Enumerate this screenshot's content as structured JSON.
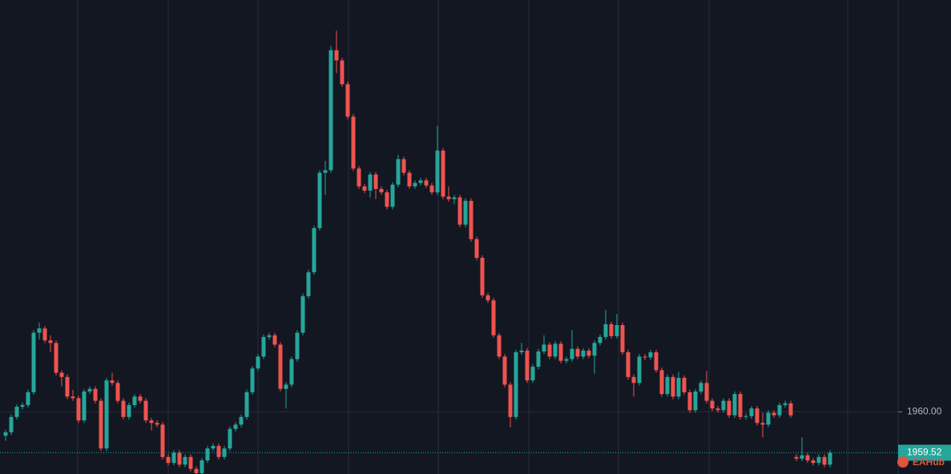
{
  "chart_data": {
    "type": "candlestick",
    "watermark": "EAHub",
    "up_color": "#26a69a",
    "down_color": "#ef5350",
    "ylim": [
      1959.27,
      1964.84
    ],
    "yticks": [
      {
        "value": 1960,
        "label": "1960.00"
      }
    ],
    "last_price": 1959.52,
    "grid": true,
    "candles": [
      [
        1959.72,
        1959.79,
        1959.66,
        1959.76
      ],
      [
        1959.76,
        1959.97,
        1959.73,
        1959.94
      ],
      [
        1959.94,
        1960.09,
        1959.91,
        1960.06
      ],
      [
        1960.06,
        1960.11,
        1960.03,
        1960.08
      ],
      [
        1960.08,
        1960.26,
        1960.05,
        1960.23
      ],
      [
        1960.23,
        1960.96,
        1960.2,
        1960.93
      ],
      [
        1960.93,
        1961.05,
        1960.85,
        1960.98
      ],
      [
        1960.98,
        1961.01,
        1960.81,
        1960.84
      ],
      [
        1960.84,
        1960.9,
        1960.7,
        1960.81
      ],
      [
        1960.81,
        1960.84,
        1960.43,
        1960.46
      ],
      [
        1960.46,
        1960.49,
        1960.3,
        1960.41
      ],
      [
        1960.41,
        1960.44,
        1960.15,
        1960.18
      ],
      [
        1960.18,
        1960.26,
        1960.13,
        1960.16
      ],
      [
        1960.16,
        1960.19,
        1959.87,
        1959.9
      ],
      [
        1959.9,
        1960.27,
        1959.87,
        1960.24
      ],
      [
        1960.24,
        1960.3,
        1960.21,
        1960.27
      ],
      [
        1960.27,
        1960.3,
        1960.1,
        1960.13
      ],
      [
        1960.13,
        1960.16,
        1959.54,
        1959.57
      ],
      [
        1959.57,
        1960.4,
        1959.54,
        1960.37
      ],
      [
        1960.37,
        1960.46,
        1960.31,
        1960.34
      ],
      [
        1960.34,
        1960.37,
        1960.1,
        1960.13
      ],
      [
        1960.13,
        1960.16,
        1959.91,
        1959.94
      ],
      [
        1959.94,
        1960.11,
        1959.91,
        1960.08
      ],
      [
        1960.08,
        1960.21,
        1960.05,
        1960.18
      ],
      [
        1960.18,
        1960.21,
        1960.1,
        1960.13
      ],
      [
        1960.13,
        1960.16,
        1959.87,
        1959.9
      ],
      [
        1959.9,
        1959.93,
        1959.78,
        1959.87
      ],
      [
        1959.87,
        1959.9,
        1959.82,
        1959.85
      ],
      [
        1959.85,
        1959.88,
        1959.44,
        1959.47
      ],
      [
        1959.47,
        1959.5,
        1959.37,
        1959.4
      ],
      [
        1959.4,
        1959.55,
        1959.37,
        1959.52
      ],
      [
        1959.52,
        1959.55,
        1959.35,
        1959.38
      ],
      [
        1959.38,
        1959.5,
        1959.35,
        1959.47
      ],
      [
        1959.47,
        1959.5,
        1959.3,
        1959.33
      ],
      [
        1959.33,
        1959.36,
        1959.25,
        1959.28
      ],
      [
        1959.28,
        1959.46,
        1959.25,
        1959.43
      ],
      [
        1959.43,
        1959.6,
        1959.4,
        1959.57
      ],
      [
        1959.57,
        1959.63,
        1959.54,
        1959.6
      ],
      [
        1959.6,
        1959.63,
        1959.44,
        1959.47
      ],
      [
        1959.47,
        1959.6,
        1959.44,
        1959.57
      ],
      [
        1959.57,
        1959.83,
        1959.54,
        1959.8
      ],
      [
        1959.8,
        1959.88,
        1959.77,
        1959.85
      ],
      [
        1959.85,
        1959.97,
        1959.82,
        1959.94
      ],
      [
        1959.94,
        1960.26,
        1959.91,
        1960.23
      ],
      [
        1960.23,
        1960.54,
        1960.2,
        1960.51
      ],
      [
        1960.51,
        1960.68,
        1960.48,
        1960.65
      ],
      [
        1960.65,
        1960.91,
        1960.62,
        1960.88
      ],
      [
        1960.88,
        1960.93,
        1960.85,
        1960.9
      ],
      [
        1960.9,
        1960.93,
        1960.76,
        1960.79
      ],
      [
        1960.79,
        1960.82,
        1960.24,
        1960.27
      ],
      [
        1960.27,
        1960.35,
        1960.04,
        1960.32
      ],
      [
        1960.32,
        1960.65,
        1960.29,
        1960.62
      ],
      [
        1960.62,
        1960.96,
        1960.59,
        1960.93
      ],
      [
        1960.93,
        1961.39,
        1960.9,
        1961.36
      ],
      [
        1961.36,
        1961.67,
        1961.33,
        1961.64
      ],
      [
        1961.64,
        1962.19,
        1961.61,
        1962.16
      ],
      [
        1962.16,
        1962.84,
        1962.13,
        1962.81
      ],
      [
        1962.81,
        1962.95,
        1962.55,
        1962.84
      ],
      [
        1962.84,
        1964.3,
        1962.81,
        1964.25
      ],
      [
        1964.25,
        1964.48,
        1963.98,
        1964.13
      ],
      [
        1964.13,
        1964.16,
        1963.82,
        1963.85
      ],
      [
        1963.85,
        1963.88,
        1963.44,
        1963.47
      ],
      [
        1963.47,
        1963.5,
        1962.83,
        1962.86
      ],
      [
        1962.86,
        1962.89,
        1962.62,
        1962.65
      ],
      [
        1962.65,
        1962.68,
        1962.57,
        1962.6
      ],
      [
        1962.6,
        1962.82,
        1962.52,
        1962.79
      ],
      [
        1962.79,
        1962.82,
        1962.5,
        1962.62
      ],
      [
        1962.62,
        1962.65,
        1962.55,
        1962.58
      ],
      [
        1962.58,
        1962.61,
        1962.38,
        1962.41
      ],
      [
        1962.41,
        1962.7,
        1962.38,
        1962.67
      ],
      [
        1962.67,
        1963.02,
        1962.64,
        1962.97
      ],
      [
        1962.97,
        1963,
        1962.78,
        1962.81
      ],
      [
        1962.81,
        1962.84,
        1962.62,
        1962.65
      ],
      [
        1962.65,
        1962.72,
        1962.62,
        1962.69
      ],
      [
        1962.69,
        1962.75,
        1962.66,
        1962.72
      ],
      [
        1962.72,
        1962.75,
        1962.63,
        1962.66
      ],
      [
        1962.66,
        1962.69,
        1962.55,
        1962.58
      ],
      [
        1962.58,
        1963.36,
        1962.55,
        1963.07
      ],
      [
        1963.07,
        1963.1,
        1962.5,
        1962.53
      ],
      [
        1962.53,
        1962.65,
        1962.47,
        1962.5
      ],
      [
        1962.5,
        1962.55,
        1962.44,
        1962.52
      ],
      [
        1962.52,
        1962.55,
        1962.17,
        1962.2
      ],
      [
        1962.2,
        1962.51,
        1962.17,
        1962.48
      ],
      [
        1962.48,
        1962.51,
        1962,
        1962.03
      ],
      [
        1962.03,
        1962.06,
        1961.78,
        1961.81
      ],
      [
        1961.81,
        1961.84,
        1961.34,
        1961.37
      ],
      [
        1961.37,
        1961.4,
        1961.28,
        1961.31
      ],
      [
        1961.31,
        1961.34,
        1960.87,
        1960.9
      ],
      [
        1960.9,
        1960.93,
        1960.62,
        1960.65
      ],
      [
        1960.65,
        1960.68,
        1960.29,
        1960.32
      ],
      [
        1960.32,
        1960.35,
        1959.82,
        1959.94
      ],
      [
        1959.94,
        1960.73,
        1959.91,
        1960.7
      ],
      [
        1960.7,
        1960.81,
        1960.67,
        1960.72
      ],
      [
        1960.72,
        1960.75,
        1960.34,
        1960.37
      ],
      [
        1960.37,
        1960.56,
        1960.34,
        1960.53
      ],
      [
        1960.53,
        1960.74,
        1960.5,
        1960.71
      ],
      [
        1960.71,
        1960.9,
        1960.68,
        1960.79
      ],
      [
        1960.79,
        1960.82,
        1960.62,
        1960.65
      ],
      [
        1960.65,
        1960.83,
        1960.62,
        1960.8
      ],
      [
        1960.8,
        1960.83,
        1960.57,
        1960.6
      ],
      [
        1960.6,
        1960.65,
        1960.57,
        1960.62
      ],
      [
        1960.62,
        1960.96,
        1960.59,
        1960.74
      ],
      [
        1960.74,
        1960.77,
        1960.62,
        1960.65
      ],
      [
        1960.65,
        1960.75,
        1960.62,
        1960.72
      ],
      [
        1960.72,
        1960.75,
        1960.63,
        1960.66
      ],
      [
        1960.66,
        1960.84,
        1960.45,
        1960.81
      ],
      [
        1960.81,
        1960.91,
        1960.78,
        1960.88
      ],
      [
        1960.88,
        1961.2,
        1960.85,
        1961.03
      ],
      [
        1961.03,
        1961.06,
        1960.86,
        1960.89
      ],
      [
        1960.89,
        1961.15,
        1960.86,
        1961.02
      ],
      [
        1961.02,
        1961.05,
        1960.67,
        1960.7
      ],
      [
        1960.7,
        1960.73,
        1960.38,
        1960.41
      ],
      [
        1960.41,
        1960.44,
        1960.18,
        1960.34
      ],
      [
        1960.34,
        1960.68,
        1960.31,
        1960.65
      ],
      [
        1960.65,
        1960.68,
        1960.61,
        1960.64
      ],
      [
        1960.64,
        1960.73,
        1960.61,
        1960.7
      ],
      [
        1960.7,
        1960.73,
        1960.46,
        1960.49
      ],
      [
        1960.49,
        1960.52,
        1960.18,
        1960.21
      ],
      [
        1960.21,
        1960.44,
        1960.18,
        1960.41
      ],
      [
        1960.41,
        1960.44,
        1960.15,
        1960.18
      ],
      [
        1960.18,
        1960.47,
        1960.15,
        1960.4
      ],
      [
        1960.4,
        1960.43,
        1960.2,
        1960.23
      ],
      [
        1960.23,
        1960.26,
        1959.99,
        1960.02
      ],
      [
        1960.02,
        1960.27,
        1959.99,
        1960.24
      ],
      [
        1960.24,
        1960.37,
        1960.21,
        1960.34
      ],
      [
        1960.34,
        1960.48,
        1960.1,
        1960.13
      ],
      [
        1960.13,
        1960.16,
        1960.01,
        1960.04
      ],
      [
        1960.04,
        1960.07,
        1959.99,
        1960.02
      ],
      [
        1960.02,
        1960.16,
        1959.99,
        1960.13
      ],
      [
        1960.13,
        1960.16,
        1959.93,
        1959.96
      ],
      [
        1959.96,
        1960.24,
        1959.93,
        1960.21
      ],
      [
        1960.21,
        1960.24,
        1959.91,
        1959.94
      ],
      [
        1959.94,
        1959.98,
        1959.91,
        1959.95
      ],
      [
        1959.95,
        1960.07,
        1959.92,
        1960.04
      ],
      [
        1960.04,
        1960.07,
        1959.84,
        1959.87
      ],
      [
        1959.87,
        1959.99,
        1959.7,
        1959.85
      ],
      [
        1959.85,
        1960.02,
        1959.82,
        1959.99
      ],
      [
        1959.99,
        1960.02,
        1959.93,
        1959.96
      ],
      [
        1959.96,
        1960.11,
        1959.93,
        1960.08
      ],
      [
        1960.08,
        1960.13,
        1960.05,
        1960.1
      ],
      [
        1960.1,
        1960.13,
        1959.93,
        1959.96
      ],
      [
        1959.47,
        1959.5,
        1959.42,
        1959.45
      ],
      [
        1959.45,
        1959.7,
        1959.42,
        1959.49
      ],
      [
        1959.49,
        1959.52,
        1959.4,
        1959.43
      ],
      [
        1959.43,
        1959.46,
        1959.37,
        1959.4
      ],
      [
        1959.4,
        1959.5,
        1959.37,
        1959.47
      ],
      [
        1959.47,
        1959.5,
        1959.35,
        1959.38
      ],
      [
        1959.38,
        1959.55,
        1959.35,
        1959.52
      ]
    ]
  }
}
